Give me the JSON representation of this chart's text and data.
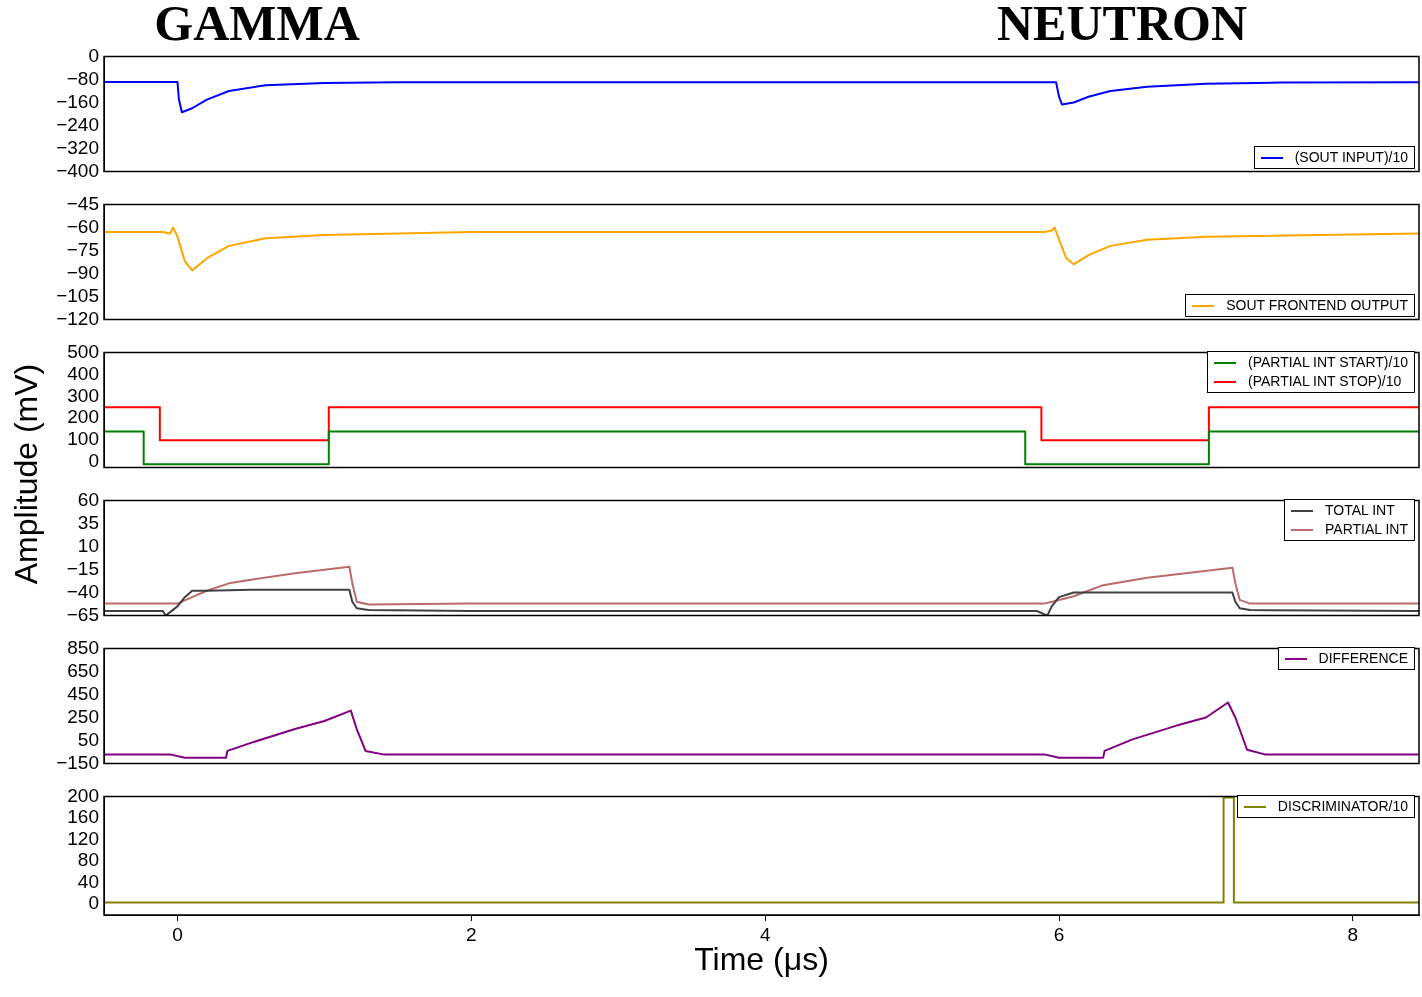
{
  "chart_data": [
    {
      "type": "line",
      "annotations": [
        "GAMMA",
        "NEUTRON"
      ],
      "xlim": [
        -0.5,
        8.45
      ],
      "ylim": [
        -400,
        0
      ],
      "yticks": [
        0,
        -80,
        -160,
        -240,
        -320,
        -400
      ],
      "tick_labels": "y",
      "grid": false,
      "legend": "bottom right",
      "series": [
        {
          "name": "(SOUT INPUT)/10",
          "color": "#0000ff",
          "x": [
            -0.5,
            0.0,
            0.01,
            0.03,
            0.1,
            0.2,
            0.35,
            0.6,
            1.0,
            1.5,
            5.98,
            6.0,
            6.02,
            6.1,
            6.2,
            6.35,
            6.6,
            7.0,
            7.5,
            8.45
          ],
          "values": [
            -89,
            -89,
            -150,
            -194,
            -180,
            -150,
            -120,
            -100,
            -92,
            -90,
            -90,
            -140,
            -167,
            -160,
            -140,
            -120,
            -105,
            -95,
            -91,
            -90
          ]
        }
      ]
    },
    {
      "type": "line",
      "xlim": [
        -0.5,
        8.45
      ],
      "ylim": [
        -120,
        -45
      ],
      "yticks": [
        -45,
        -60,
        -75,
        -90,
        -105,
        -120
      ],
      "tick_labels": "y",
      "grid": false,
      "legend": "bottom right",
      "series": [
        {
          "name": "SOUT FRONTEND OUTPUT",
          "color": "#ffa500",
          "x": [
            -0.5,
            -0.1,
            -0.05,
            -0.03,
            0.0,
            0.05,
            0.1,
            0.2,
            0.35,
            0.6,
            1.0,
            2.0,
            5.8,
            5.9,
            5.95,
            5.97,
            6.0,
            6.05,
            6.1,
            6.2,
            6.35,
            6.6,
            7.0,
            8.45
          ],
          "values": [
            -63,
            -63,
            -64,
            -60,
            -66,
            -82,
            -88,
            -80,
            -72,
            -67,
            -65,
            -63,
            -63,
            -63,
            -62,
            -60,
            -68,
            -80,
            -84,
            -78,
            -72,
            -68,
            -66,
            -64
          ]
        }
      ]
    },
    {
      "type": "line",
      "xlim": [
        -0.5,
        8.45
      ],
      "ylim": [
        -25,
        500
      ],
      "yticks": [
        0,
        100,
        200,
        300,
        400,
        500
      ],
      "tick_labels": "y",
      "grid": false,
      "legend": "top right",
      "series": [
        {
          "name": "(PARTIAL INT START)/10",
          "color": "#008000",
          "x": [
            -0.5,
            -0.23,
            -0.23,
            1.03,
            1.03,
            5.77,
            5.77,
            7.02,
            7.02,
            8.45
          ],
          "values": [
            140,
            140,
            -10,
            -10,
            140,
            140,
            -10,
            -10,
            140,
            140
          ]
        },
        {
          "name": "(PARTIAL INT STOP)/10",
          "color": "#ff0000",
          "x": [
            -0.5,
            -0.12,
            -0.12,
            1.03,
            1.03,
            5.88,
            5.88,
            7.02,
            7.02,
            8.45
          ],
          "values": [
            250,
            250,
            100,
            100,
            250,
            250,
            100,
            100,
            250,
            250
          ]
        }
      ]
    },
    {
      "type": "line",
      "ylabel": "Amplitude (mV)",
      "xlim": [
        -0.5,
        8.45
      ],
      "ylim": [
        -65,
        60
      ],
      "yticks": [
        60,
        35,
        10,
        -15,
        -40,
        -65
      ],
      "tick_labels": "y",
      "grid": false,
      "legend": "top right",
      "series": [
        {
          "name": "TOTAL INT",
          "color": "#404040",
          "x": [
            -0.5,
            -0.1,
            -0.08,
            0.0,
            0.05,
            0.1,
            0.2,
            0.5,
            1.17,
            1.19,
            1.22,
            1.3,
            2.0,
            5.85,
            5.92,
            5.95,
            6.0,
            6.1,
            6.3,
            7.18,
            7.2,
            7.23,
            7.3,
            8.45
          ],
          "values": [
            -60,
            -60,
            -65,
            -55,
            -45,
            -38,
            -38,
            -37,
            -37,
            -50,
            -57,
            -59,
            -60,
            -60,
            -65,
            -55,
            -45,
            -40,
            -40,
            -40,
            -50,
            -57,
            -59,
            -60
          ]
        },
        {
          "name": "PARTIAL INT",
          "color": "#bc6b6b",
          "x": [
            -0.5,
            0.0,
            0.1,
            0.2,
            0.35,
            0.5,
            0.8,
            1.17,
            1.19,
            1.22,
            1.3,
            2.0,
            5.9,
            6.0,
            6.1,
            6.3,
            6.6,
            7.18,
            7.2,
            7.23,
            7.3,
            8.45
          ],
          "values": [
            -52,
            -52,
            -45,
            -38,
            -30,
            -26,
            -19,
            -12,
            -30,
            -50,
            -53,
            -52,
            -52,
            -48,
            -44,
            -32,
            -24,
            -13,
            -30,
            -48,
            -52,
            -52
          ]
        }
      ]
    },
    {
      "type": "line",
      "xlim": [
        -0.5,
        8.45
      ],
      "ylim": [
        -150,
        850
      ],
      "yticks": [
        -150,
        50,
        250,
        450,
        650,
        850
      ],
      "tick_labels": "y",
      "grid": false,
      "legend": "top right",
      "series": [
        {
          "name": "DIFFERENCE",
          "color": "#800080",
          "x": [
            -0.5,
            -0.05,
            0.05,
            0.33,
            0.34,
            0.5,
            0.8,
            1.0,
            1.18,
            1.22,
            1.28,
            1.4,
            2.0,
            5.9,
            6.0,
            6.3,
            6.31,
            6.5,
            6.8,
            7.0,
            7.15,
            7.2,
            7.28,
            7.4,
            8.45
          ],
          "values": [
            -70,
            -70,
            -100,
            -100,
            -40,
            30,
            150,
            220,
            310,
            150,
            -40,
            -70,
            -70,
            -70,
            -100,
            -100,
            -40,
            60,
            180,
            250,
            380,
            250,
            -30,
            -70,
            -70
          ]
        }
      ]
    },
    {
      "type": "line",
      "xlabel": "Time (μs)",
      "xlim": [
        -0.5,
        8.45
      ],
      "xticks": [
        0,
        2,
        4,
        6,
        8
      ],
      "ylim": [
        -20,
        200
      ],
      "yticks": [
        0,
        40,
        80,
        120,
        160,
        200
      ],
      "grid": false,
      "legend": "top right",
      "series": [
        {
          "name": "DISCRIMINATOR/10",
          "color": "#808000",
          "x": [
            -0.5,
            7.12,
            7.12,
            7.19,
            7.19,
            8.45
          ],
          "values": [
            3,
            3,
            198,
            198,
            3,
            3
          ]
        }
      ]
    }
  ]
}
